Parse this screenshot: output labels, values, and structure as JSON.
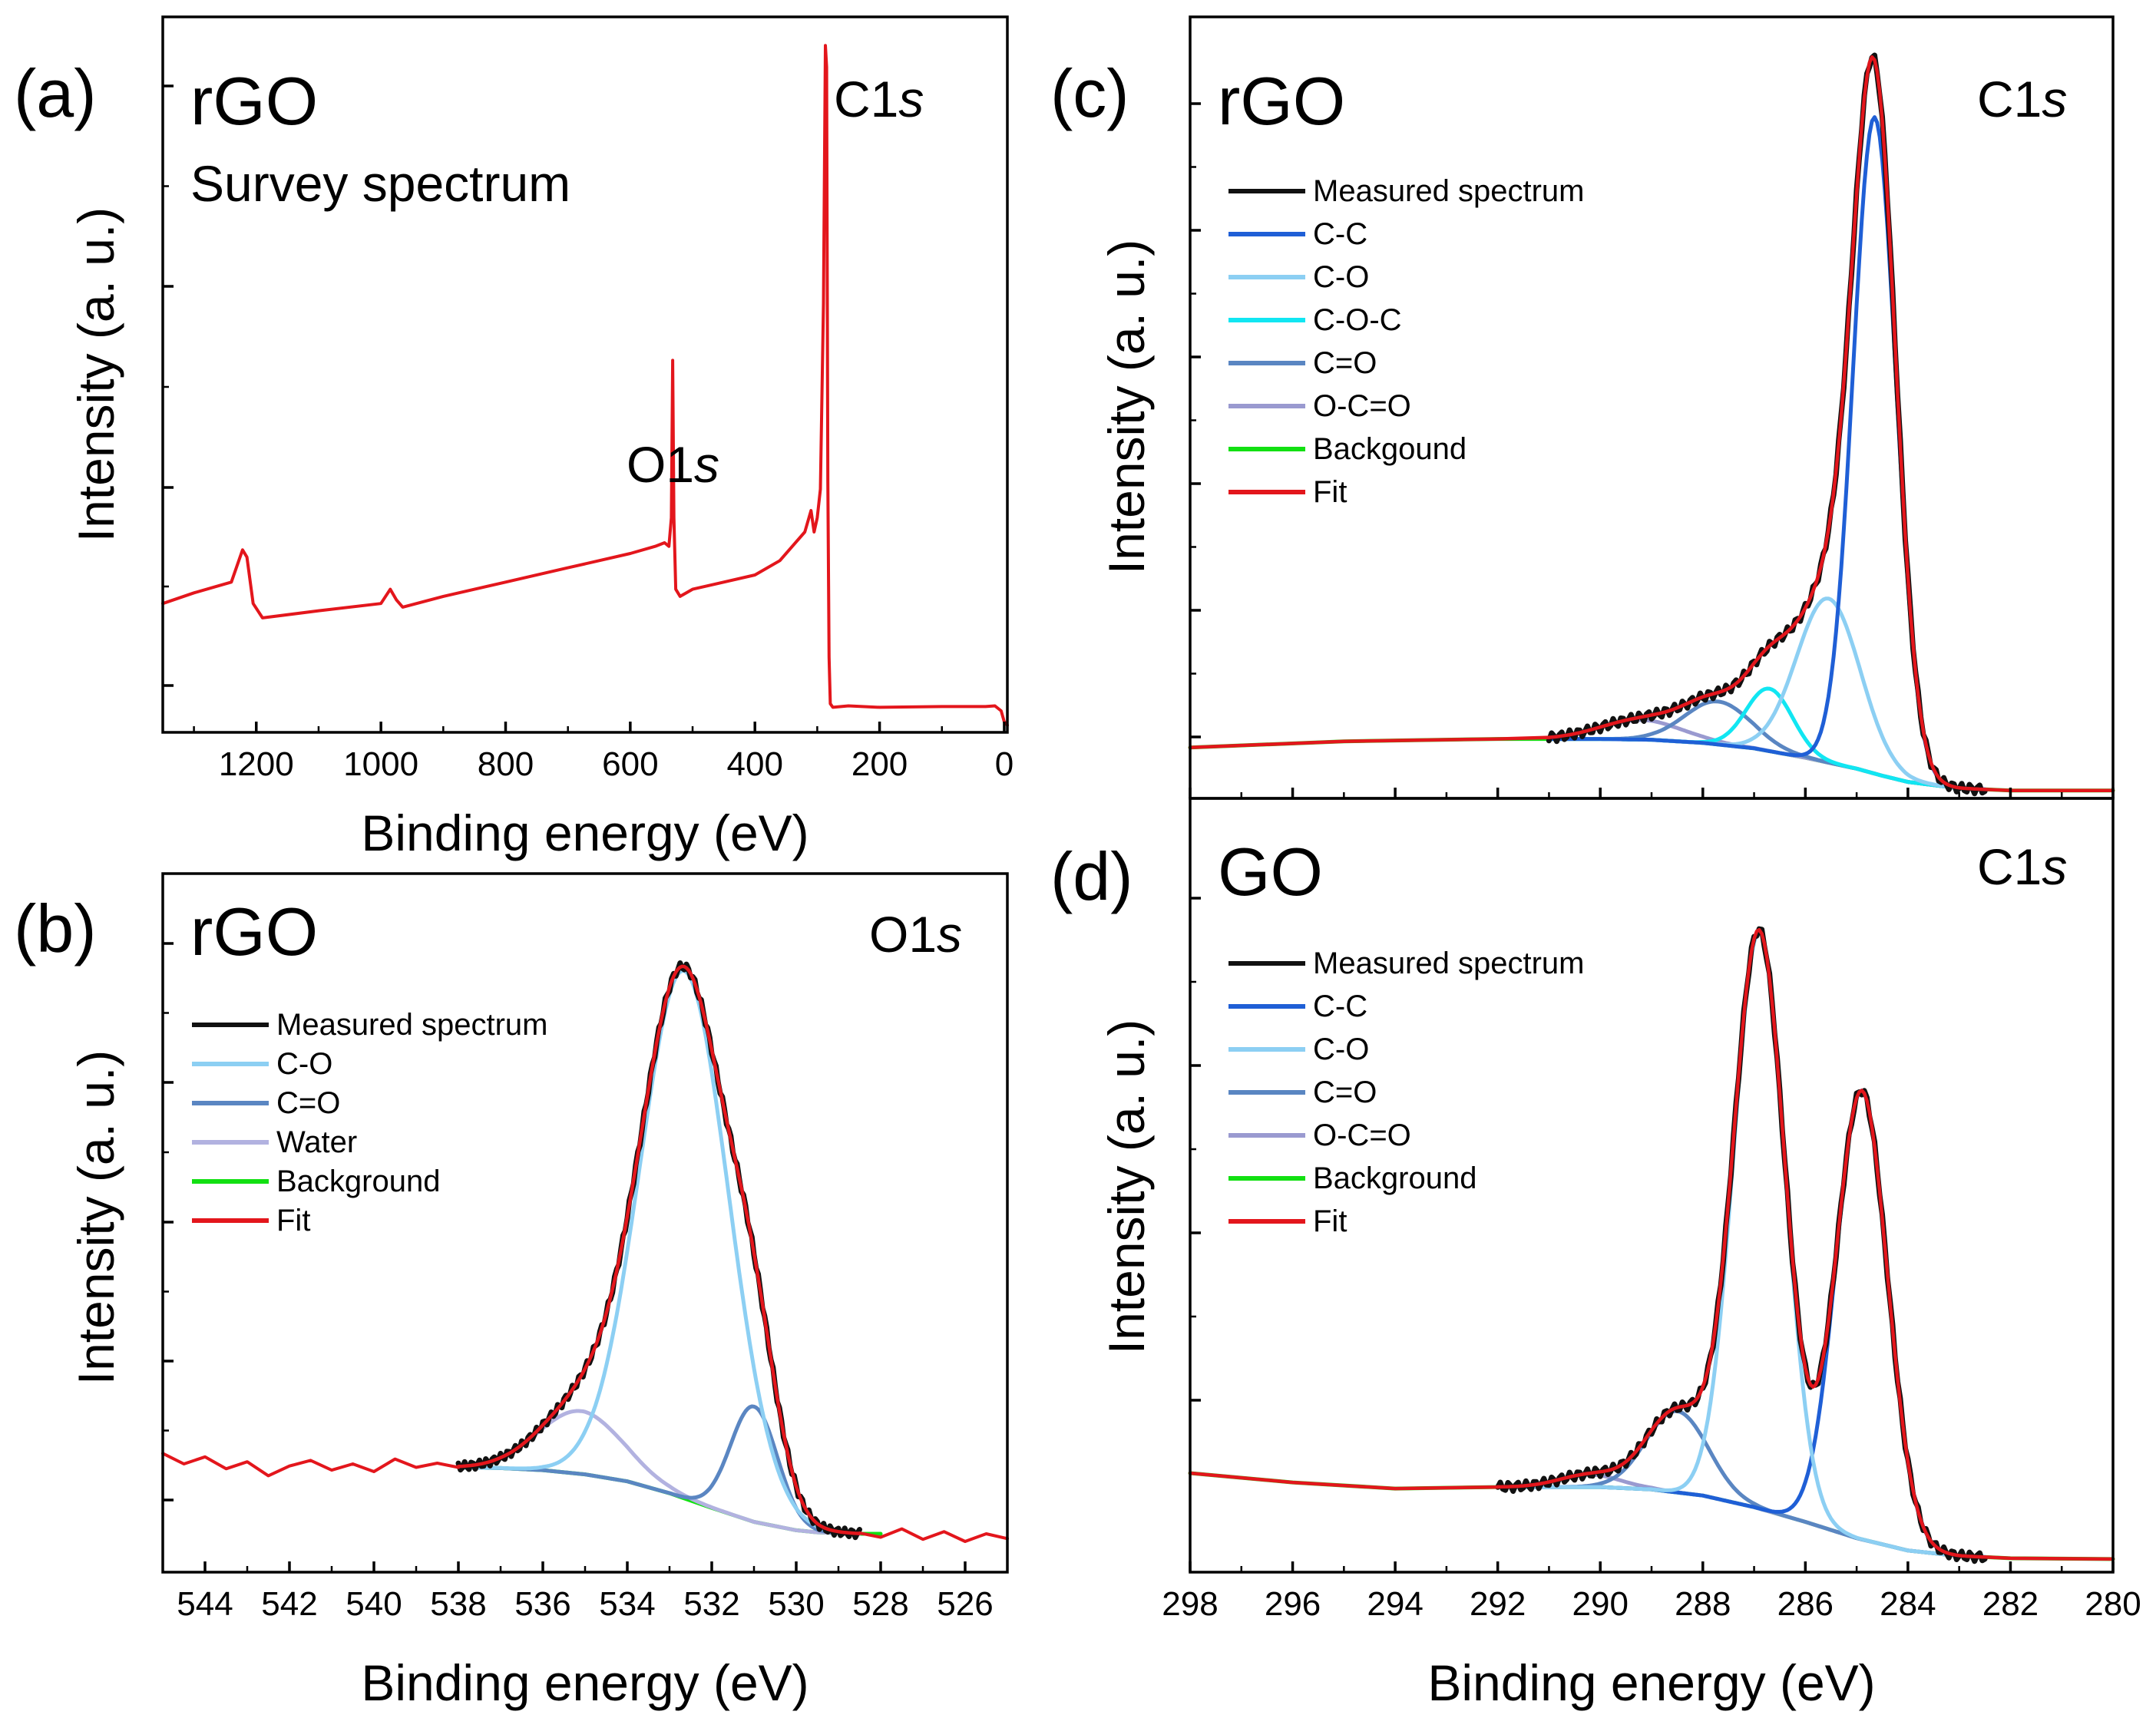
{
  "figure": {
    "ylabel": "Intensity (a. u.)",
    "xlabel": "Binding energy (eV)"
  },
  "colors": {
    "measured": "#111111",
    "C-C": "#1f5fd6",
    "C-O": "#8ccff3",
    "C-O-C": "#11e6f2",
    "C=O": "#5a86c2",
    "O-C=O": "#9a9ad0",
    "Water": "#b2b2e0",
    "background": "#12e012",
    "fit": "#e3161c"
  },
  "chart_data": [
    {
      "id": "a",
      "type": "line",
      "panel_label": "(a)",
      "sample": "rGO",
      "subtitle": "Survey spectrum",
      "region": "C1s",
      "xlabel": "Binding energy (eV)",
      "ylabel": "Intensity (a. u.)",
      "xlim": [
        1350,
        -5
      ],
      "ylim": [
        0,
        100
      ],
      "xticks": [
        "1200",
        "1000",
        "800",
        "600",
        "400",
        "200",
        "0"
      ],
      "xtick_values": [
        1200,
        1000,
        800,
        600,
        400,
        200,
        0
      ],
      "annotations": [
        {
          "text": "O1s",
          "x": 532
        },
        {
          "text": "C1s",
          "x": 285
        }
      ],
      "series": [
        {
          "name": "Survey",
          "color": "#e3161c",
          "x": [
            1350,
            1300,
            1240,
            1222,
            1215,
            1205,
            1190,
            1100,
            1000,
            985,
            975,
            965,
            900,
            800,
            700,
            650,
            600,
            560,
            545,
            538,
            534,
            532,
            530,
            527,
            520,
            500,
            450,
            400,
            360,
            340,
            320,
            310,
            305,
            300,
            295,
            290,
            287,
            285,
            283,
            281,
            279,
            275,
            250,
            200,
            100,
            30,
            15,
            5,
            0,
            -5
          ],
          "y": [
            18.0,
            19.5,
            21.0,
            25.5,
            24.5,
            18.0,
            16.0,
            17.0,
            18.0,
            20.0,
            18.5,
            17.5,
            19.0,
            21.0,
            23.0,
            24.0,
            25.0,
            26.0,
            26.5,
            26.0,
            30.0,
            52.0,
            30.0,
            20.0,
            19.0,
            20.0,
            21.0,
            22.0,
            24.0,
            26.0,
            28.0,
            31.0,
            28.0,
            30.0,
            34.0,
            60.0,
            96.0,
            93.0,
            35.0,
            10.5,
            4.0,
            3.5,
            3.7,
            3.5,
            3.6,
            3.6,
            3.7,
            3.0,
            1.5,
            1.0
          ]
        }
      ]
    },
    {
      "id": "b",
      "type": "line",
      "panel_label": "(b)",
      "sample": "rGO",
      "region": "O1s",
      "xlabel": "Binding energy (eV)",
      "ylabel": "Intensity (a. u.)",
      "xlim": [
        545,
        525
      ],
      "ylim": [
        0,
        100
      ],
      "xticks": [
        "544",
        "542",
        "540",
        "538",
        "536",
        "534",
        "532",
        "530",
        "528",
        "526"
      ],
      "xtick_values": [
        544,
        542,
        540,
        538,
        536,
        534,
        532,
        530,
        528,
        526
      ],
      "background": {
        "x": [
          538,
          537,
          536,
          535,
          534,
          533,
          532,
          531,
          530,
          529.5,
          529,
          528.5,
          528
        ],
        "y": [
          15.0,
          14.9,
          14.6,
          14.0,
          13.0,
          11.3,
          9.2,
          7.2,
          6.0,
          5.7,
          5.6,
          5.5,
          5.5
        ]
      },
      "components": [
        {
          "name": "C-O",
          "center": 532.65,
          "height": 75.5,
          "sigma": 1.05,
          "color_key": "C-O"
        },
        {
          "name": "C=O",
          "center": 531.0,
          "height": 16.5,
          "sigma": 0.55,
          "color_key": "C=O"
        },
        {
          "name": "Water",
          "center": 535.1,
          "height": 9.0,
          "sigma": 1.0,
          "color_key": "Water"
        }
      ],
      "component_range": [
        538,
        528.5
      ],
      "noisy_tails": [
        {
          "x": [
            545,
            544.5,
            544,
            543.5,
            543,
            542.5,
            542,
            541.5,
            541,
            540.5,
            540,
            539.5,
            539,
            538.5,
            538
          ],
          "y": [
            17.0,
            15.5,
            16.5,
            14.8,
            15.8,
            13.8,
            15.2,
            16.0,
            14.6,
            15.5,
            14.4,
            16.2,
            15.0,
            15.6,
            15.0
          ]
        },
        {
          "x": [
            528.5,
            528.0,
            527.5,
            527.0,
            526.5,
            526.0,
            525.5,
            525.0
          ],
          "y": [
            5.6,
            5.0,
            6.2,
            4.7,
            5.8,
            4.4,
            5.5,
            4.8
          ]
        }
      ],
      "legend": [
        "Measured spectrum",
        "C-O",
        "C=O",
        "Water",
        "Background",
        "Fit"
      ]
    },
    {
      "id": "c",
      "type": "line",
      "panel_label": "(c)",
      "sample": "rGO",
      "region": "C1s",
      "xlabel": "",
      "ylabel": "Intensity (a. u.)",
      "xlim": [
        298,
        280
      ],
      "ylim": [
        0,
        100
      ],
      "background": {
        "x": [
          298,
          295,
          292,
          290,
          289,
          288,
          287,
          286,
          285,
          284.5,
          284,
          283,
          282,
          280
        ],
        "y": [
          6.5,
          7.3,
          7.6,
          7.6,
          7.5,
          7.1,
          6.4,
          5.2,
          3.8,
          2.9,
          2.1,
          1.3,
          1.0,
          1.0
        ]
      },
      "components": [
        {
          "name": "C-C",
          "center": 284.65,
          "height": 84.0,
          "sigma": 0.42,
          "color_key": "C-C"
        },
        {
          "name": "C-O",
          "center": 285.55,
          "height": 21.0,
          "sigma": 0.62,
          "color_key": "C-O"
        },
        {
          "name": "C-O-C",
          "center": 286.7,
          "height": 8.0,
          "sigma": 0.45,
          "color_key": "C-O-C"
        },
        {
          "name": "C=O",
          "center": 287.7,
          "height": 5.5,
          "sigma": 0.65,
          "color_key": "C=O"
        },
        {
          "name": "O-C=O",
          "center": 289.2,
          "height": 2.5,
          "sigma": 0.8,
          "color_key": "O-C=O"
        }
      ],
      "component_range": [
        291,
        282.5
      ],
      "legend": [
        "Measured spectrum",
        "C-C",
        "C-O",
        "C-O-C",
        "C=O",
        "O-C=O",
        "Backgound",
        "Fit"
      ]
    },
    {
      "id": "d",
      "type": "line",
      "panel_label": "(d)",
      "sample": "GO",
      "region": "C1s",
      "xlabel": "Binding energy (eV)",
      "ylabel": "Intensity (a. u.)",
      "xlim": [
        298,
        280
      ],
      "ylim": [
        0,
        100
      ],
      "xticks": [
        "298",
        "296",
        "294",
        "292",
        "290",
        "288",
        "286",
        "284",
        "282",
        "280"
      ],
      "xtick_values": [
        298,
        296,
        294,
        292,
        290,
        288,
        286,
        284,
        282,
        280
      ],
      "background": {
        "x": [
          298,
          296,
          294,
          292,
          290,
          289,
          288,
          287,
          286,
          285,
          284,
          283,
          282,
          280
        ],
        "y": [
          12.8,
          11.6,
          10.8,
          11.0,
          11.0,
          10.7,
          9.9,
          8.4,
          6.5,
          4.4,
          2.8,
          2.1,
          1.8,
          1.7
        ]
      },
      "components": [
        {
          "name": "C-O",
          "center": 286.9,
          "height": 74.5,
          "sigma": 0.5,
          "color_key": "C-O"
        },
        {
          "name": "C-C",
          "center": 284.9,
          "height": 58.0,
          "sigma": 0.5,
          "color_key": "C-C"
        },
        {
          "name": "C=O",
          "center": 288.5,
          "height": 10.5,
          "sigma": 0.6,
          "color_key": "C=O"
        },
        {
          "name": "O-C=O",
          "center": 290.2,
          "height": 1.6,
          "sigma": 0.6,
          "color_key": "O-C=O"
        }
      ],
      "component_range": [
        292,
        282.5
      ],
      "legend": [
        "Measured spectrum",
        "C-C",
        "C-O",
        "C=O",
        "O-C=O",
        "Background",
        "Fit"
      ]
    }
  ]
}
